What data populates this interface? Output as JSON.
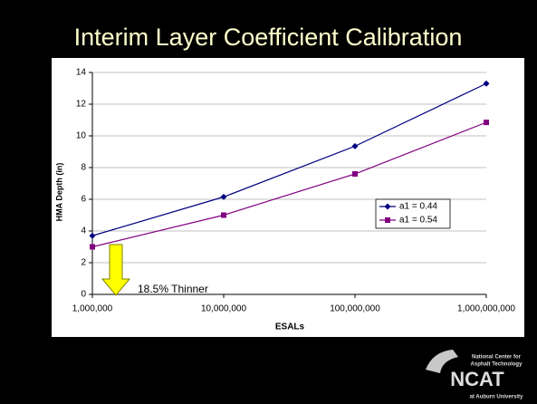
{
  "chart_data": {
    "type": "line",
    "title": "Interim Layer Coefficient Calibration",
    "x_label": "ESALs",
    "y_label": "HMA Depth (in)",
    "x": [
      1000000,
      10000000,
      100000000,
      1000000000
    ],
    "xlim": [
      1000000,
      1000000000
    ],
    "xticks": [
      {
        "value": 1000000,
        "label": "1,000,000"
      },
      {
        "value": 10000000,
        "label": "10,000,000"
      },
      {
        "value": 100000000,
        "label": "100,000,000"
      },
      {
        "value": 1000000000,
        "label": "1,000,000,000"
      }
    ],
    "x_log": true,
    "ylim": [
      0,
      14
    ],
    "yticks": [
      0,
      2,
      4,
      6,
      8,
      10,
      12,
      14
    ],
    "grid": true,
    "legend": "right",
    "series": [
      {
        "name": "a1 = 0.44",
        "color": "#000080",
        "marker": "diamond",
        "values": [
          3.7,
          6.15,
          9.35,
          13.3
        ]
      },
      {
        "name": "a1 = 0.54",
        "color": "#800080",
        "marker": "square",
        "values": [
          3.0,
          5.0,
          7.6,
          10.85
        ]
      }
    ],
    "annotation": "18.5% Thinner"
  },
  "logo": {
    "line1": "National Center for",
    "line2": "Asphalt Technology",
    "name": "NCAT",
    "line3": "at Auburn University"
  }
}
